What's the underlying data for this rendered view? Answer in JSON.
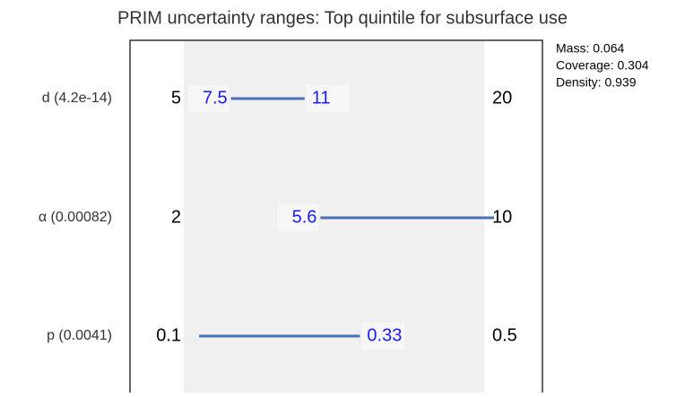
{
  "chart_data": {
    "type": "prim-box",
    "title": "PRIM uncertainty ranges: Top quintile for subsurface use",
    "stats": [
      "Mass: 0.064",
      "Coverage: 0.304",
      "Density: 0.939"
    ],
    "rows": [
      {
        "name": "d (4.2e-14)",
        "range": [
          5,
          20
        ],
        "box": [
          7.5,
          11
        ]
      },
      {
        "name": "α (0.00082)",
        "range": [
          2,
          10
        ],
        "box": [
          5.6,
          10
        ]
      },
      {
        "name": "p (0.0041)",
        "range": [
          0.1,
          0.5
        ],
        "box": [
          0.1,
          0.33
        ]
      }
    ],
    "color": "#4a6fb5",
    "label_color": "#1a1aff"
  }
}
